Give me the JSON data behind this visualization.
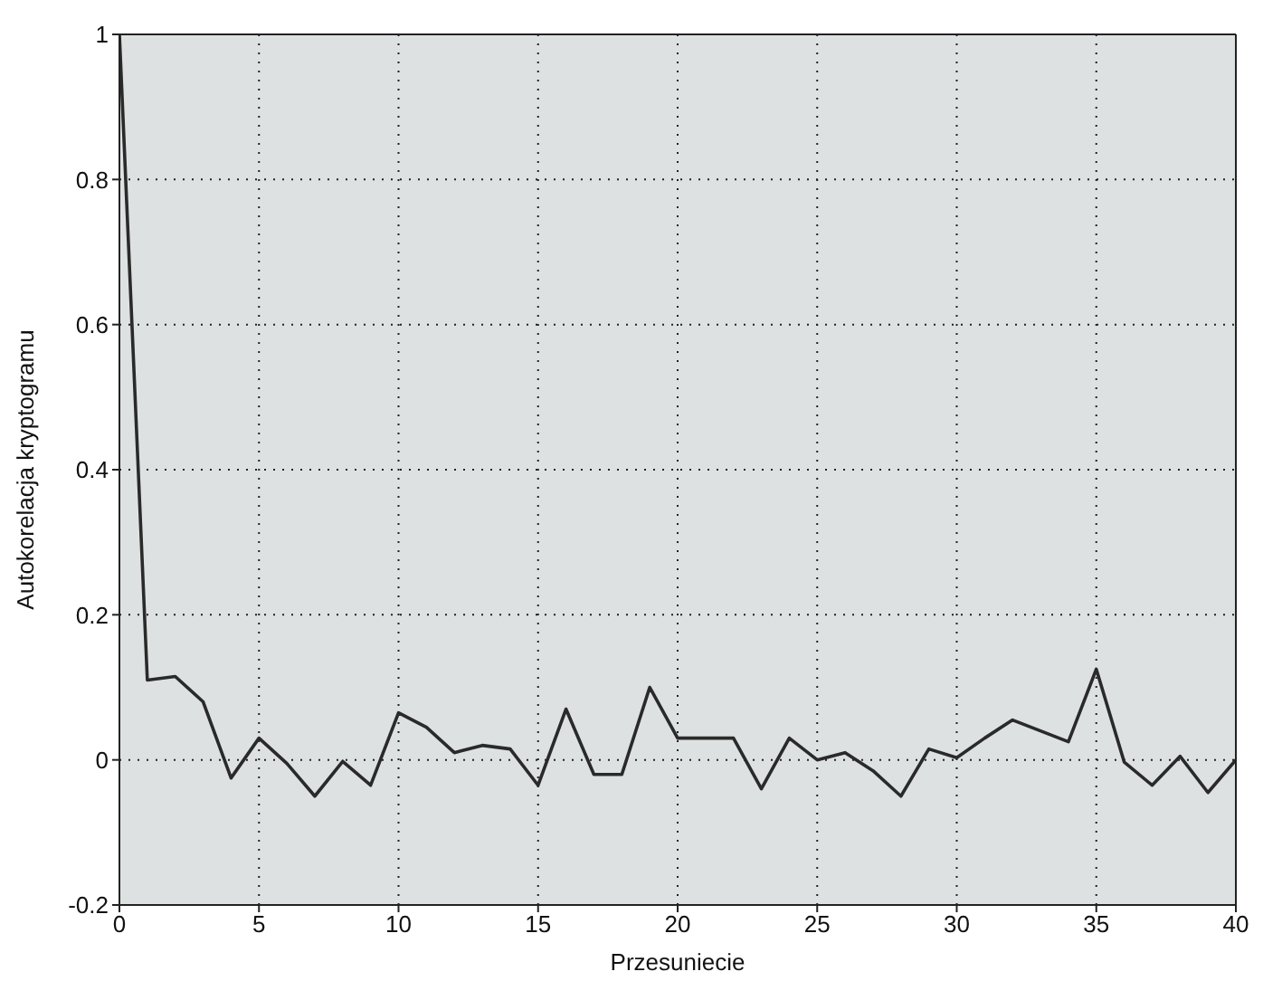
{
  "chart_data": {
    "type": "line",
    "xlabel": "Przesuniecie",
    "ylabel": "Autokorelacja kryptogramu",
    "x": [
      0,
      1,
      2,
      3,
      4,
      5,
      6,
      7,
      8,
      9,
      10,
      11,
      12,
      13,
      14,
      15,
      16,
      17,
      18,
      19,
      20,
      21,
      22,
      23,
      24,
      25,
      26,
      27,
      28,
      29,
      30,
      31,
      32,
      33,
      34,
      35,
      36,
      37,
      38,
      39,
      40
    ],
    "series": [
      {
        "color": "#2a2a2a",
        "values": [
          1,
          0.11,
          0.115,
          0.08,
          -0.025,
          0.03,
          -0.005,
          -0.05,
          -0.002,
          -0.035,
          0.065,
          0.045,
          0.01,
          0.02,
          0.015,
          -0.035,
          0.07,
          -0.02,
          -0.02,
          0.1,
          0.03,
          0.03,
          0.03,
          -0.04,
          0.03,
          0.0,
          0.01,
          -0.015,
          -0.05,
          0.015,
          0.003,
          0.03,
          0.055,
          0.04,
          0.025,
          0.125,
          -0.003,
          -0.035,
          0.005,
          -0.045,
          0.0
        ]
      }
    ],
    "xlim": [
      0,
      40
    ],
    "xticks": [
      0,
      5,
      10,
      15,
      20,
      25,
      30,
      35,
      40
    ],
    "ylim": [
      -0.2,
      1
    ],
    "yticks": [
      -0.2,
      0,
      0.2,
      0.4,
      0.6,
      0.8,
      1
    ],
    "grid": true,
    "legend": false,
    "marker": "none",
    "line_style": "solid"
  }
}
